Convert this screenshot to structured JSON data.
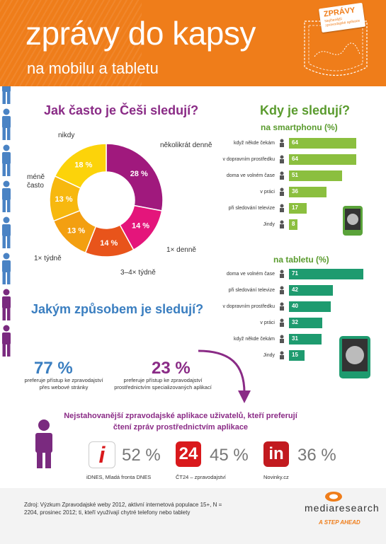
{
  "header": {
    "title": "zprávy do kapsy",
    "subtitle": "na mobilu a tabletu",
    "badge_title": "ZPRÁVY",
    "badge_text": "Nejčtenější zpravodajské aplikace"
  },
  "how_often": {
    "heading": "Jak často je Češi sledují?",
    "chart_data": {
      "type": "pie",
      "categories": [
        "několikrát denně",
        "1× denně",
        "3–4× týdně",
        "1× týdně",
        "méně často",
        "nikdy"
      ],
      "values": [
        28,
        14,
        14,
        13,
        13,
        18
      ],
      "colors": [
        "#a0197d",
        "#e4157b",
        "#e8541b",
        "#f39f11",
        "#f7b80f",
        "#fcd30a"
      ],
      "value_labels": [
        "28 %",
        "14 %",
        "14 %",
        "13 %",
        "13 %",
        "18 %"
      ]
    }
  },
  "when": {
    "heading": "Kdy je sledují?",
    "smartphone": {
      "heading": "na smartphonu (%)",
      "chart_data": {
        "type": "bar",
        "categories": [
          "když někde čekám",
          "v dopravním prostředku",
          "doma ve volném čase",
          "v práci",
          "při sledování televize",
          "Jindy"
        ],
        "values": [
          64,
          64,
          51,
          36,
          17,
          8
        ],
        "color": "#8bbf3f",
        "xlim": [
          0,
          71
        ]
      }
    },
    "tablet": {
      "heading": "na tabletu (%)",
      "chart_data": {
        "type": "bar",
        "categories": [
          "doma ve volném čase",
          "při sledování televize",
          "v dopravním prostředku",
          "v práci",
          "když někde čekám",
          "Jindy"
        ],
        "values": [
          71,
          42,
          40,
          32,
          31,
          15
        ],
        "color": "#1e9b6f",
        "xlim": [
          0,
          71
        ]
      }
    }
  },
  "how": {
    "heading": "Jakým způsobem je sledují?",
    "people_total": 10,
    "people_app": 2,
    "web_pct": "77 %",
    "web_text": "preferuje přístup ke zpravodajství přes webové stránky",
    "app_pct": "23 %",
    "app_text": "preferuje přístup ke zpravodajství prostřednictvím specializovaných aplikací"
  },
  "apps": {
    "title": "Nejstahovanější zpravodajské aplikace uživatelů, kteří preferují čtení zpráv prostřednictvím aplikace",
    "items": [
      {
        "icon_text": "i",
        "pct": "52 %",
        "name": "iDNES, Mladá fronta DNES",
        "color": "#d9191c"
      },
      {
        "icon_text": "24",
        "pct": "45 %",
        "name": "ČT24 – zpravodajství",
        "color": "#d9191c"
      },
      {
        "icon_text": "in",
        "pct": "36 %",
        "name": "Novinky.cz",
        "color": "#c21a1f"
      }
    ]
  },
  "footer": {
    "source": "Zdroj: Výzkum Zpravodajské weby 2012, aktivní internetová populace 15+, N = 2204, prosinec 2012; ti, kteří využívají chytré telefony nebo tablety",
    "logo": "mediaresearch",
    "tagline": "A STEP AHEAD"
  }
}
